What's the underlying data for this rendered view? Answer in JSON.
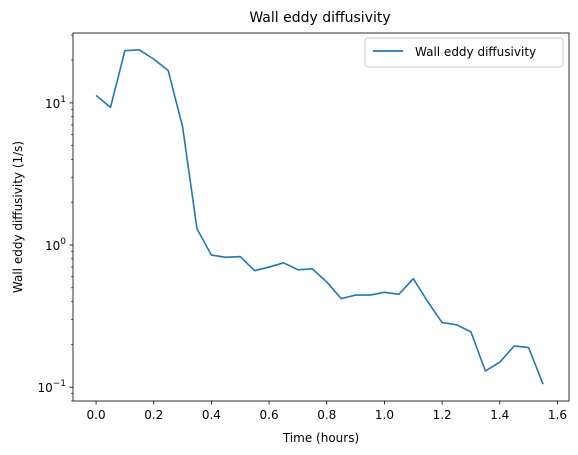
{
  "chart_data": {
    "type": "line",
    "title": "Wall eddy diffusivity",
    "xlabel": "Time (hours)",
    "ylabel": "Wall eddy diffusivity (1/s)",
    "yscale": "log",
    "xlim": [
      -0.08,
      1.64
    ],
    "ylim": [
      0.08,
      31
    ],
    "grid": false,
    "legend_position": "top-right",
    "x_ticks": [
      {
        "value": 0.0,
        "label": "0.0"
      },
      {
        "value": 0.2,
        "label": "0.2"
      },
      {
        "value": 0.4,
        "label": "0.4"
      },
      {
        "value": 0.6,
        "label": "0.6"
      },
      {
        "value": 0.8,
        "label": "0.8"
      },
      {
        "value": 1.0,
        "label": "1.0"
      },
      {
        "value": 1.2,
        "label": "1.2"
      },
      {
        "value": 1.4,
        "label": "1.4"
      },
      {
        "value": 1.6,
        "label": "1.6"
      }
    ],
    "y_ticks": [
      {
        "value": 0.1,
        "base": "10",
        "exp": "−1"
      },
      {
        "value": 1,
        "base": "10",
        "exp": "0"
      },
      {
        "value": 10,
        "base": "10",
        "exp": "1"
      }
    ],
    "series": [
      {
        "name": "Wall eddy diffusivity",
        "color": "#1f77b4",
        "x": [
          0.0,
          0.05,
          0.1,
          0.15,
          0.2,
          0.25,
          0.3,
          0.35,
          0.4,
          0.45,
          0.5,
          0.55,
          0.6,
          0.65,
          0.7,
          0.75,
          0.8,
          0.85,
          0.9,
          0.95,
          1.0,
          1.05,
          1.1,
          1.15,
          1.2,
          1.25,
          1.3,
          1.35,
          1.4,
          1.45,
          1.5,
          1.55
        ],
        "y": [
          11.3,
          9.3,
          23.3,
          23.6,
          20.3,
          16.9,
          6.8,
          1.3,
          0.85,
          0.82,
          0.83,
          0.66,
          0.7,
          0.75,
          0.67,
          0.68,
          0.55,
          0.42,
          0.445,
          0.445,
          0.465,
          0.45,
          0.58,
          0.4,
          0.285,
          0.275,
          0.245,
          0.13,
          0.15,
          0.195,
          0.19,
          0.105
        ]
      }
    ]
  }
}
